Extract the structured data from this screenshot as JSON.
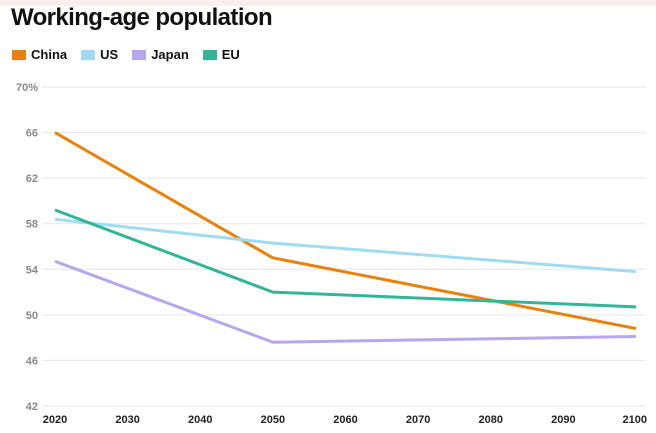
{
  "colors": {
    "China": "#e8820c",
    "US": "#9fdcf3",
    "Japan": "#b7a6ee",
    "EU": "#33b596",
    "grid": "#e6e6e6",
    "background": "#ffffff"
  },
  "chart_data": {
    "type": "line",
    "title": "Working-age population",
    "xlabel": "",
    "ylabel": "",
    "x": [
      2020,
      2030,
      2040,
      2050,
      2060,
      2070,
      2080,
      2090,
      2100
    ],
    "xlim": [
      2020,
      2100
    ],
    "ylim": [
      42,
      70
    ],
    "y_ticks": [
      "70%",
      "66",
      "62",
      "58",
      "54",
      "50",
      "46",
      "42"
    ],
    "y_tick_values": [
      70,
      66,
      62,
      58,
      54,
      50,
      46,
      42
    ],
    "grid": true,
    "legend_position": "top-left",
    "series": [
      {
        "name": "China",
        "x": [
          2020,
          2050,
          2100
        ],
        "y": [
          66.0,
          55.0,
          48.8
        ]
      },
      {
        "name": "US",
        "x": [
          2020,
          2050,
          2100
        ],
        "y": [
          58.4,
          56.3,
          53.8
        ]
      },
      {
        "name": "Japan",
        "x": [
          2020,
          2050,
          2100
        ],
        "y": [
          54.7,
          47.6,
          48.1
        ]
      },
      {
        "name": "EU",
        "x": [
          2020,
          2050,
          2100
        ],
        "y": [
          59.2,
          52.0,
          50.7
        ]
      }
    ]
  }
}
